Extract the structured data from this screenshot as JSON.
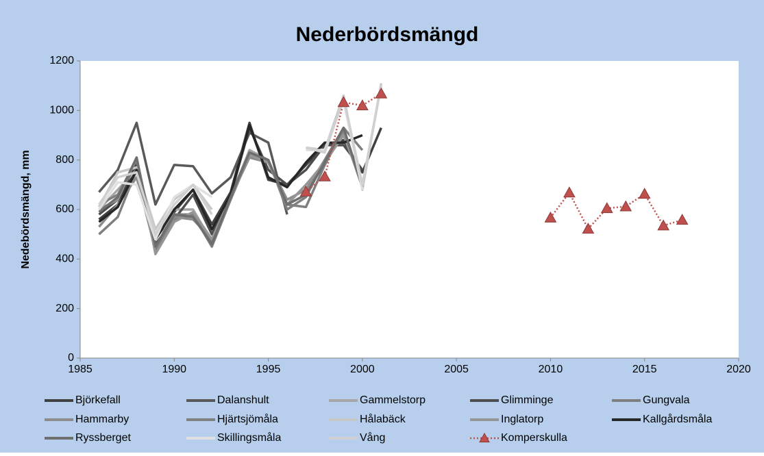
{
  "chart_data": {
    "type": "line",
    "title": "Nederbördsmängd",
    "y_label": "Nedebördsmängd, mm",
    "x": [
      1986,
      1987,
      1988,
      1989,
      1990,
      1991,
      1992,
      1993,
      1994,
      1995,
      1996,
      1997,
      1998,
      1999,
      2000,
      2001,
      2002,
      2003,
      2004,
      2005,
      2006,
      2007,
      2008,
      2009,
      2010,
      2011,
      2012,
      2013,
      2014,
      2015,
      2016,
      2017
    ],
    "xlim": [
      1985,
      2020
    ],
    "xticks": [
      1985,
      1990,
      1995,
      2000,
      2005,
      2010,
      2015,
      2020
    ],
    "ylim": [
      0,
      1200
    ],
    "yticks": [
      0,
      200,
      400,
      600,
      800,
      1000,
      1200
    ],
    "legend": "bottom",
    "series": [
      {
        "name": "Björkefall",
        "color": "#404040",
        "values": [
          560,
          620,
          780,
          480,
          590,
          680,
          540,
          670,
          950,
          720,
          700,
          780,
          860,
          880,
          750,
          930,
          null,
          null,
          null,
          null,
          null,
          null,
          null,
          null,
          null,
          null,
          null,
          null,
          null,
          null,
          null,
          null
        ]
      },
      {
        "name": "Dalanshult",
        "color": "#595959",
        "values": [
          670,
          760,
          950,
          620,
          780,
          775,
          665,
          730,
          910,
          870,
          580,
          null,
          null,
          null,
          null,
          null,
          null,
          null,
          null,
          null,
          null,
          null,
          null,
          null,
          null,
          null,
          null,
          null,
          null,
          null,
          null,
          null
        ]
      },
      {
        "name": "Gammelstorp",
        "color": "#a6a6a6",
        "values": [
          600,
          680,
          760,
          440,
          600,
          600,
          470,
          650,
          840,
          800,
          620,
          700,
          780,
          930,
          690,
          null,
          null,
          null,
          null,
          null,
          null,
          null,
          null,
          null,
          null,
          null,
          null,
          null,
          null,
          null,
          null,
          null
        ]
      },
      {
        "name": "Glimminge",
        "color": "#4d4d4d",
        "values": [
          580,
          640,
          800,
          460,
          560,
          660,
          500,
          660,
          930,
          760,
          700,
          760,
          860,
          860,
          760,
          null,
          null,
          null,
          null,
          null,
          null,
          null,
          null,
          null,
          null,
          null,
          null,
          null,
          null,
          null,
          null,
          null
        ]
      },
      {
        "name": "Gungvala",
        "color": "#7f7f7f",
        "values": [
          500,
          570,
          760,
          430,
          560,
          580,
          450,
          640,
          820,
          790,
          620,
          610,
          780,
          920,
          700,
          null,
          null,
          null,
          null,
          null,
          null,
          null,
          null,
          null,
          null,
          null,
          null,
          null,
          null,
          null,
          null,
          null
        ]
      },
      {
        "name": "Hammarby",
        "color": "#8c8c8c",
        "values": [
          530,
          620,
          730,
          440,
          570,
          560,
          480,
          650,
          810,
          790,
          640,
          680,
          800,
          910,
          690,
          null,
          null,
          null,
          null,
          null,
          null,
          null,
          null,
          null,
          null,
          null,
          null,
          null,
          null,
          null,
          null,
          null
        ]
      },
      {
        "name": "Hjärtsjömåla",
        "color": "#808080",
        "values": [
          620,
          660,
          800,
          430,
          580,
          580,
          470,
          660,
          830,
          800,
          600,
          650,
          800,
          930,
          840,
          null,
          null,
          null,
          null,
          null,
          null,
          null,
          null,
          null,
          null,
          null,
          null,
          null,
          null,
          null,
          null,
          null
        ]
      },
      {
        "name": "Hålabäck",
        "color": "#c8c8c8",
        "values": [
          610,
          750,
          770,
          520,
          640,
          700,
          600,
          null,
          null,
          null,
          null,
          850,
          840,
          1060,
          680,
          1110,
          null,
          null,
          null,
          null,
          null,
          null,
          null,
          null,
          null,
          null,
          null,
          null,
          null,
          null,
          null,
          null
        ]
      },
      {
        "name": "Inglatorp",
        "color": "#969696",
        "values": [
          600,
          640,
          810,
          420,
          550,
          590,
          480,
          650,
          820,
          790,
          620,
          700,
          790,
          900,
          700,
          null,
          null,
          null,
          null,
          null,
          null,
          null,
          null,
          null,
          null,
          null,
          null,
          null,
          null,
          null,
          null,
          null
        ]
      },
      {
        "name": "Kallgårdsmåla",
        "color": "#262626",
        "values": [
          550,
          610,
          760,
          480,
          600,
          680,
          520,
          660,
          940,
          730,
          690,
          790,
          870,
          870,
          900,
          null,
          null,
          null,
          null,
          null,
          null,
          null,
          null,
          null,
          null,
          null,
          null,
          null,
          null,
          null,
          null,
          null
        ]
      },
      {
        "name": "Ryssberget",
        "color": "#6e6e6e",
        "values": [
          590,
          650,
          810,
          450,
          580,
          570,
          460,
          650,
          830,
          800,
          620,
          660,
          790,
          930,
          690,
          null,
          null,
          null,
          null,
          null,
          null,
          null,
          null,
          null,
          null,
          null,
          null,
          null,
          null,
          null,
          null,
          null
        ]
      },
      {
        "name": "Skillingsmåla",
        "color": "#e0e0e0",
        "values": [
          600,
          710,
          700,
          480,
          650,
          700,
          650,
          null,
          null,
          null,
          null,
          840,
          840,
          1040,
          680,
          null,
          null,
          null,
          null,
          null,
          null,
          null,
          null,
          null,
          null,
          null,
          null,
          null,
          null,
          null,
          null,
          null
        ]
      },
      {
        "name": "Vång",
        "color": "#d0d0d0",
        "values": [
          620,
          730,
          750,
          500,
          620,
          700,
          580,
          null,
          null,
          null,
          null,
          850,
          830,
          1050,
          700,
          1100,
          null,
          null,
          null,
          null,
          null,
          null,
          null,
          null,
          null,
          null,
          null,
          null,
          null,
          null,
          null,
          null
        ]
      },
      {
        "name": "Komperskulla",
        "color": "#c0504d",
        "dash": "dotted",
        "marker": "triangle",
        "values": [
          null,
          null,
          null,
          null,
          null,
          null,
          null,
          null,
          null,
          null,
          null,
          672,
          733,
          1033,
          1020,
          1068,
          null,
          null,
          null,
          null,
          null,
          null,
          null,
          null,
          567,
          668,
          522,
          605,
          612,
          663,
          535,
          558
        ]
      }
    ]
  }
}
